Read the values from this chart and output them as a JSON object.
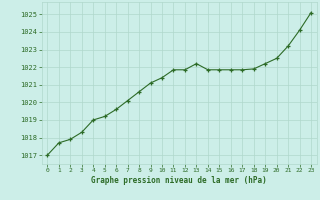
{
  "x": [
    0,
    1,
    2,
    3,
    4,
    5,
    6,
    7,
    8,
    9,
    10,
    11,
    12,
    13,
    14,
    15,
    16,
    17,
    18,
    19,
    20,
    21,
    22,
    23
  ],
  "y": [
    1017.0,
    1017.7,
    1017.9,
    1018.3,
    1019.0,
    1019.2,
    1019.6,
    1020.1,
    1020.6,
    1021.1,
    1021.4,
    1021.85,
    1021.85,
    1022.2,
    1021.85,
    1021.85,
    1021.85,
    1021.85,
    1021.9,
    1022.2,
    1022.5,
    1023.2,
    1024.1,
    1025.1
  ],
  "line_color": "#2d6b27",
  "marker_color": "#2d6b27",
  "bg_color": "#cceee8",
  "grid_color": "#b0d8cc",
  "xlabel": "Graphe pression niveau de la mer (hPa)",
  "xlabel_color": "#2d6b27",
  "tick_label_color": "#2d6b27",
  "ylim_min": 1016.5,
  "ylim_max": 1025.7,
  "yticks": [
    1017,
    1018,
    1019,
    1020,
    1021,
    1022,
    1023,
    1024,
    1025
  ],
  "xlim_min": -0.5,
  "xlim_max": 23.5
}
